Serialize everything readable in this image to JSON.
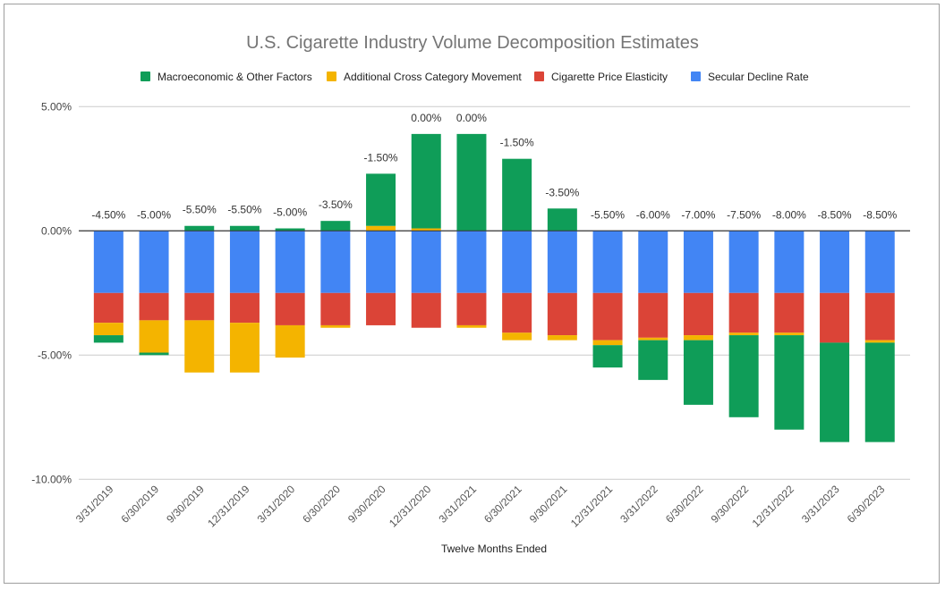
{
  "chart_data": {
    "type": "bar",
    "stacked": true,
    "title": "U.S. Cigarette Industry Volume Decomposition Estimates",
    "xlabel": "Twelve Months Ended",
    "ylabel": "",
    "ylim": [
      -10,
      5
    ],
    "yticks": [
      5,
      0,
      -5,
      -10
    ],
    "ytick_labels": [
      "5.00%",
      "0.00%",
      "-5.00%",
      "-10.00%"
    ],
    "grid": true,
    "legend_position": "top",
    "categories": [
      "3/31/2019",
      "6/30/2019",
      "9/30/2019",
      "12/31/2019",
      "3/31/2020",
      "6/30/2020",
      "9/30/2020",
      "12/31/2020",
      "3/31/2021",
      "6/30/2021",
      "9/30/2021",
      "12/31/2021",
      "3/31/2022",
      "6/30/2022",
      "9/30/2022",
      "12/31/2022",
      "3/31/2023",
      "6/30/2023"
    ],
    "series": [
      {
        "name": "Macroeconomic & Other Factors",
        "color": "#0f9d58",
        "values": [
          -0.3,
          -0.1,
          0.2,
          0.2,
          0.1,
          0.4,
          2.1,
          3.8,
          3.9,
          2.9,
          0.9,
          -0.9,
          -1.6,
          -2.6,
          -3.3,
          -3.8,
          -4.0,
          -4.0
        ]
      },
      {
        "name": "Additional Cross Category Movement",
        "color": "#f4b400",
        "values": [
          -0.5,
          -1.3,
          -2.1,
          -2.0,
          -1.3,
          -0.1,
          0.2,
          0.1,
          -0.1,
          -0.3,
          -0.2,
          -0.2,
          -0.1,
          -0.2,
          -0.1,
          -0.1,
          0.0,
          -0.1
        ]
      },
      {
        "name": "Cigarette Price Elasticity",
        "color": "#db4437",
        "values": [
          -1.2,
          -1.1,
          -1.1,
          -1.2,
          -1.3,
          -1.3,
          -1.3,
          -1.4,
          -1.3,
          -1.6,
          -1.7,
          -1.9,
          -1.8,
          -1.7,
          -1.6,
          -1.6,
          -2.0,
          -1.9
        ]
      },
      {
        "name": "Secular Decline Rate",
        "color": "#4285f4",
        "values": [
          -2.5,
          -2.5,
          -2.5,
          -2.5,
          -2.5,
          -2.5,
          -2.5,
          -2.5,
          -2.5,
          -2.5,
          -2.5,
          -2.5,
          -2.5,
          -2.5,
          -2.5,
          -2.5,
          -2.5,
          -2.5
        ]
      }
    ],
    "totals": [
      -4.5,
      -5.0,
      -5.5,
      -5.5,
      -5.0,
      -3.5,
      -1.5,
      0.0,
      0.0,
      -1.5,
      -3.5,
      -5.5,
      -6.0,
      -7.0,
      -7.5,
      -8.0,
      -8.5,
      -8.5
    ],
    "total_labels": [
      "-4.50%",
      "-5.00%",
      "-5.50%",
      "-5.50%",
      "-5.00%",
      "-3.50%",
      "-1.50%",
      "0.00%",
      "0.00%",
      "-1.50%",
      "-3.50%",
      "-5.50%",
      "-6.00%",
      "-7.00%",
      "-7.50%",
      "-8.00%",
      "-8.50%",
      "-8.50%"
    ]
  }
}
